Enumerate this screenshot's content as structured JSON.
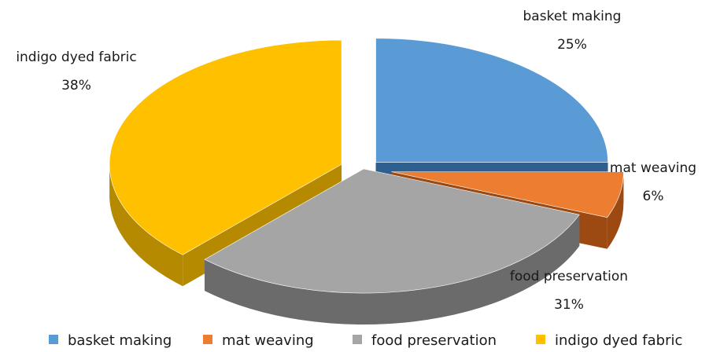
{
  "chart_data": {
    "type": "pie",
    "style": "3d-exploded",
    "categories": [
      "basket making",
      "mat weaving",
      "food preservation",
      "indigo dyed fabric"
    ],
    "values": [
      25,
      6,
      31,
      38
    ],
    "value_labels": [
      "25%",
      "6%",
      "31%",
      "38%"
    ],
    "colors": [
      "#5b9bd5",
      "#ed7d31",
      "#a5a5a5",
      "#ffc000"
    ],
    "side_colors": [
      "#2f5f8f",
      "#9c4a12",
      "#6b6b6b",
      "#b58a00"
    ],
    "legend": {
      "placement": "bottom",
      "entries": [
        "basket making",
        "mat weaving",
        "food preservation",
        "indigo dyed fabric"
      ]
    },
    "title": ""
  }
}
